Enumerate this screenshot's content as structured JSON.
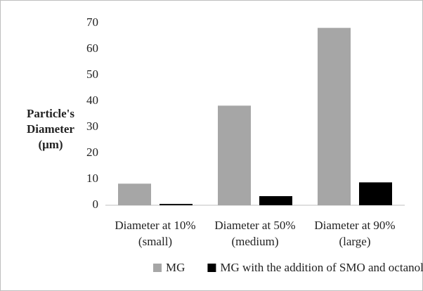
{
  "chart_data": {
    "type": "bar",
    "y_label": [
      "Particle's",
      "Diameter",
      "(μm)"
    ],
    "categories": [
      [
        "Diameter at 10%",
        "(small)"
      ],
      [
        "Diameter at 50%",
        "(medium)"
      ],
      [
        "Diameter at 90%",
        "(large)"
      ]
    ],
    "series": [
      {
        "name": "MG",
        "color": "#a6a6a6",
        "values": [
          8.3,
          38.3,
          68.2
        ]
      },
      {
        "name": "MG with the addition of SMO and octanol",
        "color": "#000000",
        "values": [
          0.5,
          3.5,
          8.8
        ]
      }
    ],
    "ylim": [
      0,
      70
    ],
    "yticks": [
      0,
      10,
      20,
      30,
      40,
      50,
      60,
      70
    ],
    "grid": false,
    "legend": "bottom"
  }
}
